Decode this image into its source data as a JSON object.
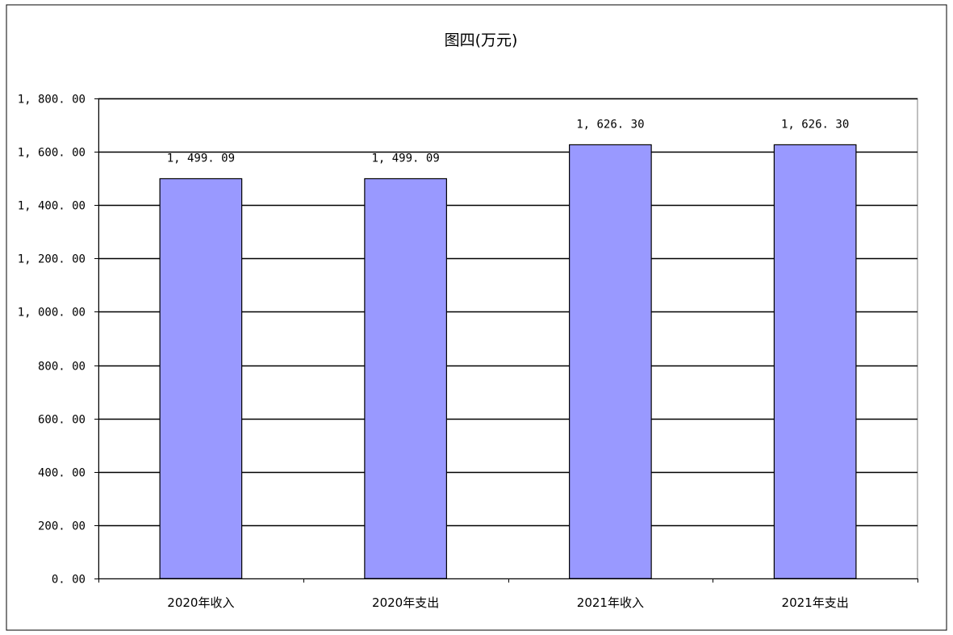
{
  "chart_data": {
    "type": "bar",
    "title": "图四(万元)",
    "categories": [
      "2020年收入",
      "2020年支出",
      "2021年收入",
      "2021年支出"
    ],
    "values": [
      1499.09,
      1499.09,
      1626.3,
      1626.3
    ],
    "data_labels": [
      "1, 499. 09",
      "1, 499. 09",
      "1, 626. 30",
      "1, 626. 30"
    ],
    "ylim": [
      0,
      1800
    ],
    "ytick_values": [
      0,
      200,
      400,
      600,
      800,
      1000,
      1200,
      1400,
      1600,
      1800
    ],
    "ytick_labels": [
      "0. 00",
      "200. 00",
      "400. 00",
      "600. 00",
      "800. 00",
      "1, 000. 00",
      "1, 200. 00",
      "1, 400. 00",
      "1, 600. 00",
      "1, 800. 00"
    ],
    "xlabel": "",
    "ylabel": "",
    "grid": true,
    "legend": "none",
    "colors": {
      "bar": "#9999ff",
      "bar_stroke": "#000000",
      "grid": "#000000",
      "frame": "#000000"
    }
  }
}
